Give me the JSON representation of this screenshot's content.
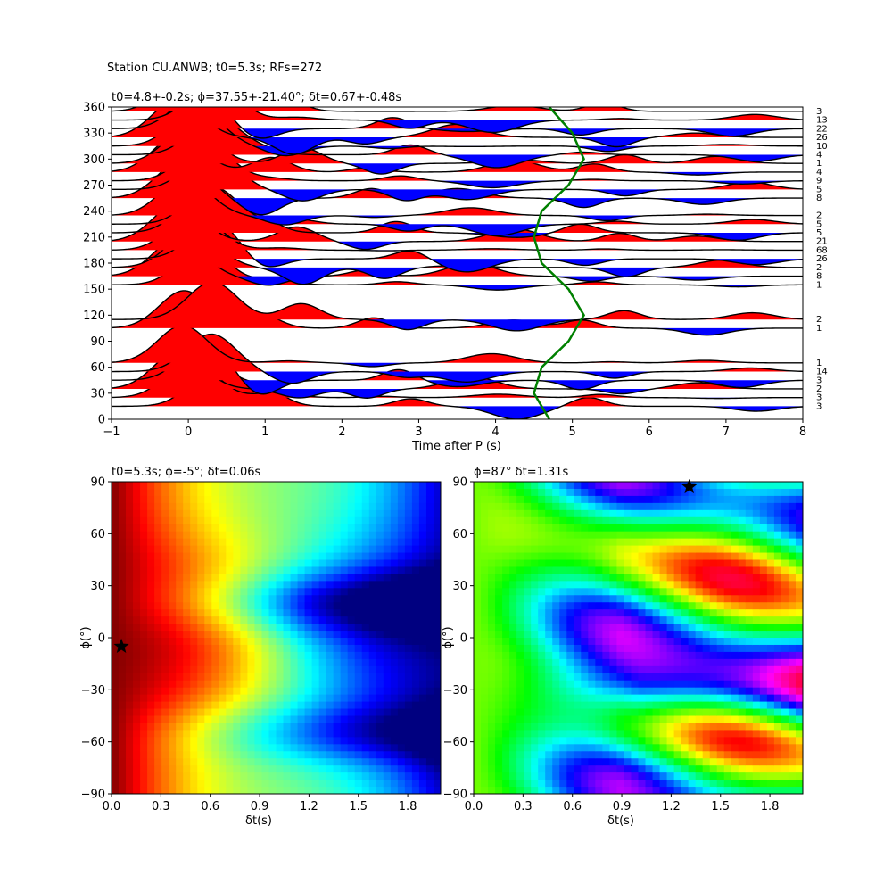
{
  "suptitle": "Station CU.ANWB; t0=5.3s; RFs=272",
  "top": {
    "title": "t0=4.8+-0.2s; ϕ=37.55+-21.40°; δt=0.67+-0.48s",
    "xlabel": "Time after P (s)",
    "ylabel": "",
    "xlim": [
      -1,
      8
    ],
    "ylim": [
      0,
      360
    ],
    "xticks": [
      "−1",
      "0",
      "1",
      "2",
      "3",
      "4",
      "5",
      "6",
      "7",
      "8"
    ],
    "yticks": [
      "0",
      "30",
      "60",
      "90",
      "120",
      "150",
      "180",
      "210",
      "240",
      "270",
      "300",
      "330",
      "360"
    ],
    "count_labels": [
      "3",
      "13",
      "22",
      "26",
      "10",
      "4",
      "1",
      "4",
      "9",
      "5",
      "8",
      "2",
      "5",
      "5",
      "21",
      "68",
      "26",
      "2",
      "8",
      "1",
      "2",
      "1",
      "1",
      "14",
      "3",
      "2",
      "3",
      "3"
    ],
    "positive_color": "#ff0000",
    "negative_color": "#0000ff",
    "curve_color": "#008000"
  },
  "chart_data": [
    {
      "type": "line",
      "title": "t0=4.8+-0.2s; ϕ=37.55+-21.40°; δt=0.67+-0.48s",
      "xlabel": "Time after P (s)",
      "xlim": [
        -1,
        8
      ],
      "ylim": [
        0,
        360
      ],
      "traces": [
        {
          "baz": 15,
          "count": 3
        },
        {
          "baz": 25,
          "count": 3
        },
        {
          "baz": 35,
          "count": 2
        },
        {
          "baz": 45,
          "count": 3
        },
        {
          "baz": 55,
          "count": 14
        },
        {
          "baz": 65,
          "count": 1
        },
        {
          "baz": 105,
          "count": 1
        },
        {
          "baz": 115,
          "count": 2
        },
        {
          "baz": 155,
          "count": 1
        },
        {
          "baz": 165,
          "count": 8
        },
        {
          "baz": 175,
          "count": 2
        },
        {
          "baz": 185,
          "count": 26
        },
        {
          "baz": 195,
          "count": 68
        },
        {
          "baz": 205,
          "count": 21
        },
        {
          "baz": 215,
          "count": 5
        },
        {
          "baz": 225,
          "count": 5
        },
        {
          "baz": 235,
          "count": 2
        },
        {
          "baz": 255,
          "count": 8
        },
        {
          "baz": 265,
          "count": 5
        },
        {
          "baz": 275,
          "count": 9
        },
        {
          "baz": 285,
          "count": 4
        },
        {
          "baz": 295,
          "count": 1
        },
        {
          "baz": 305,
          "count": 4
        },
        {
          "baz": 315,
          "count": 10
        },
        {
          "baz": 325,
          "count": 26
        },
        {
          "baz": 335,
          "count": 22
        },
        {
          "baz": 345,
          "count": 13
        },
        {
          "baz": 355,
          "count": 3
        }
      ],
      "predicted_curve": {
        "baz": [
          0,
          30,
          60,
          90,
          120,
          150,
          180,
          210,
          240,
          270,
          300,
          330,
          360
        ],
        "time": [
          4.7,
          4.5,
          4.6,
          4.95,
          5.15,
          4.95,
          4.6,
          4.5,
          4.6,
          4.95,
          5.15,
          5.0,
          4.7
        ]
      }
    },
    {
      "type": "heatmap",
      "title": "t0=5.3s; ϕ=-5°; δt=0.06s",
      "xlabel": "δt(s)",
      "ylabel": "ϕ(°)",
      "xlim": [
        0,
        2
      ],
      "ylim": [
        -90,
        90
      ],
      "xticks": [
        "0.0",
        "0.3",
        "0.6",
        "0.9",
        "1.2",
        "1.5",
        "1.8"
      ],
      "yticks": [
        "−90",
        "−60",
        "−30",
        "0",
        "30",
        "60",
        "90"
      ],
      "colormap": "jet",
      "best": {
        "dt": 0.06,
        "phi": -5
      }
    },
    {
      "type": "heatmap",
      "title": "ϕ=87° δt=1.31s",
      "xlabel": "δt(s)",
      "ylabel": "ϕ(°)",
      "xlim": [
        0,
        2
      ],
      "ylim": [
        -90,
        90
      ],
      "xticks": [
        "0.0",
        "0.3",
        "0.6",
        "0.9",
        "1.2",
        "1.5",
        "1.8"
      ],
      "yticks": [
        "−90",
        "−60",
        "−30",
        "0",
        "30",
        "60",
        "90"
      ],
      "colormap": "hsv",
      "best": {
        "dt": 1.31,
        "phi": 87
      }
    }
  ]
}
